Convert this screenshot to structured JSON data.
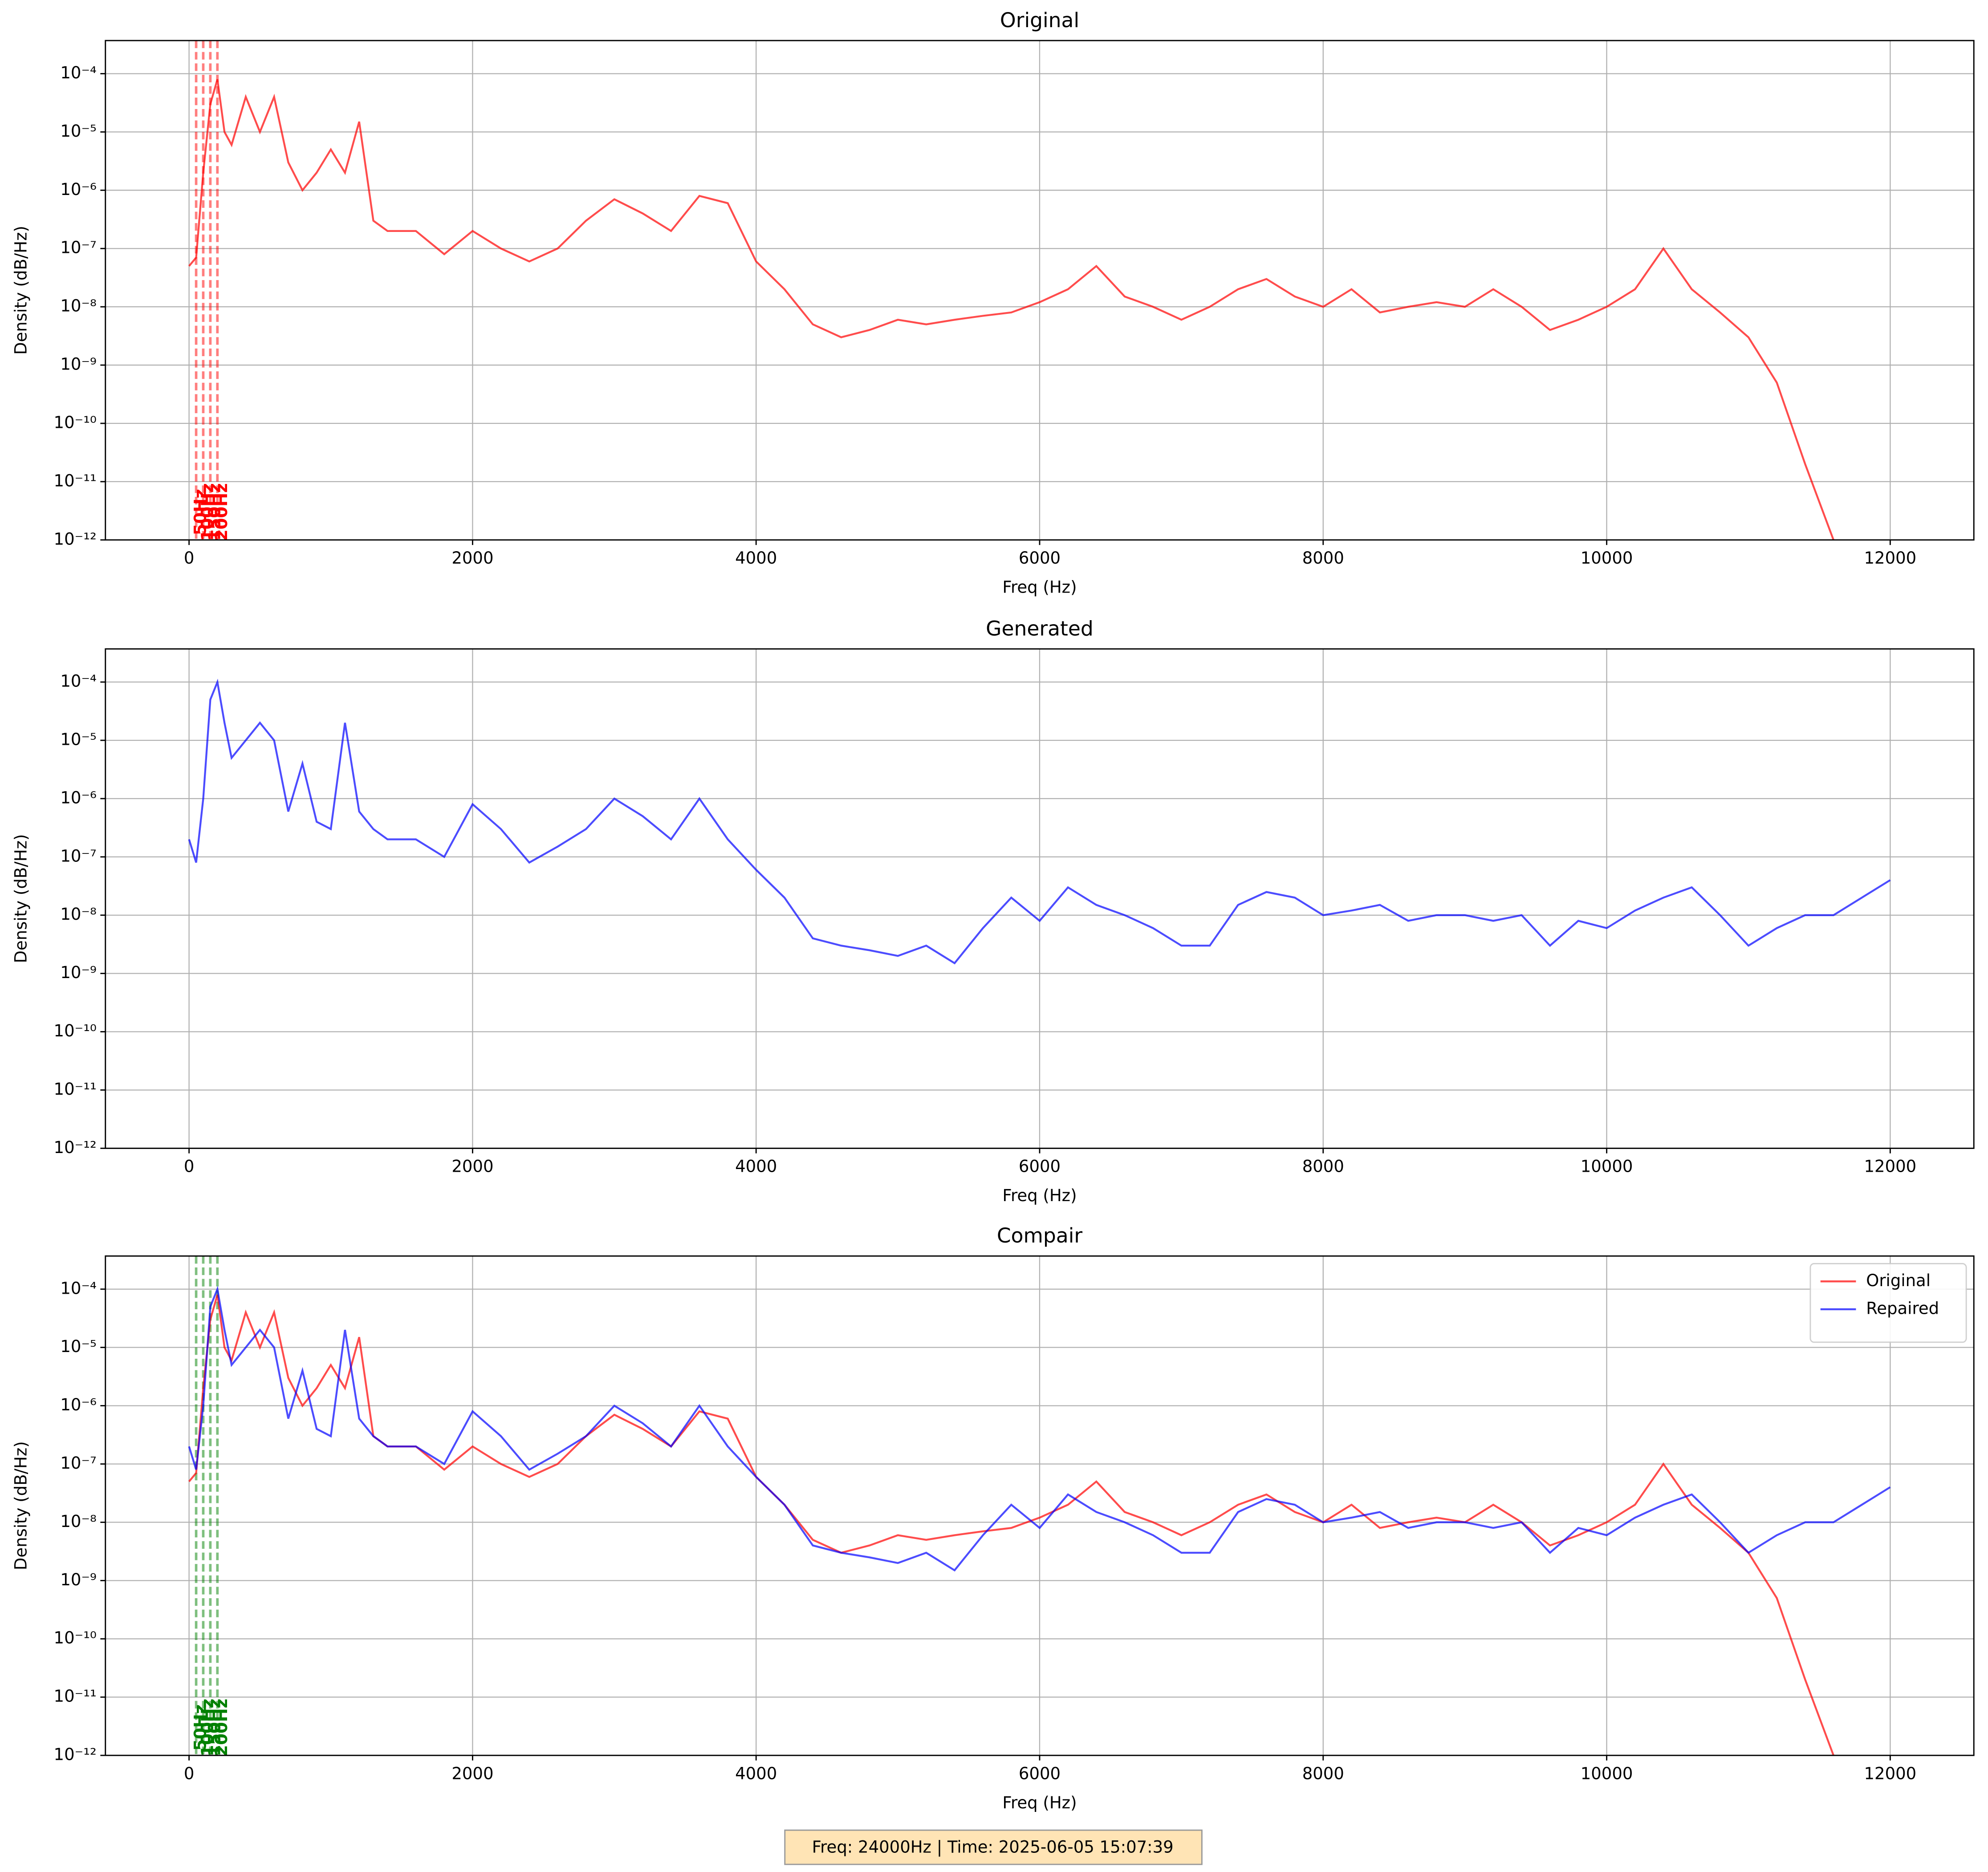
{
  "chart_data": [
    {
      "type": "line",
      "title": "Original",
      "xlabel": "Freq (Hz)",
      "ylabel": "Density (dB/Hz)",
      "x": [
        0,
        50,
        100,
        150,
        200,
        250,
        300,
        400,
        500,
        600,
        700,
        800,
        900,
        1000,
        1100,
        1200,
        1300,
        1400,
        1600,
        1800,
        2000,
        2200,
        2400,
        2600,
        2800,
        3000,
        3200,
        3400,
        3600,
        3800,
        4000,
        4200,
        4400,
        4600,
        4800,
        5000,
        5200,
        5400,
        5600,
        5800,
        6000,
        6200,
        6400,
        6600,
        6800,
        7000,
        7200,
        7400,
        7600,
        7800,
        8000,
        8200,
        8400,
        8600,
        8800,
        9000,
        9200,
        9400,
        9600,
        9800,
        10000,
        10200,
        10400,
        10600,
        10800,
        11000,
        11200,
        11400,
        11600,
        11800,
        12000
      ],
      "series": [
        {
          "name": "Original",
          "color": "#ff0000",
          "values": [
            5e-08,
            7e-08,
            2e-06,
            3e-05,
            8e-05,
            1e-05,
            6e-06,
            4e-05,
            1e-05,
            4e-05,
            3e-06,
            1e-06,
            2e-06,
            5e-06,
            2e-06,
            1.5e-05,
            3e-07,
            2e-07,
            2e-07,
            8e-08,
            2e-07,
            1e-07,
            6e-08,
            1e-07,
            3e-07,
            7e-07,
            4e-07,
            2e-07,
            8e-07,
            6e-07,
            6e-08,
            2e-08,
            5e-09,
            3e-09,
            4e-09,
            6e-09,
            5e-09,
            6e-09,
            7e-09,
            8e-09,
            1.2e-08,
            2e-08,
            5e-08,
            1.5e-08,
            1e-08,
            6e-09,
            1e-08,
            2e-08,
            3e-08,
            1.5e-08,
            1e-08,
            2e-08,
            8e-09,
            1e-08,
            1.2e-08,
            1e-08,
            2e-08,
            1e-08,
            4e-09,
            6e-09,
            1e-08,
            2e-08,
            1e-07,
            2e-08,
            8e-09,
            3e-09,
            5e-10,
            2e-11,
            1e-12,
            null,
            null
          ]
        }
      ],
      "xlim": [
        -590,
        12590
      ],
      "ylim": [
        1e-12,
        0.00037
      ],
      "log_y": true,
      "grid": true,
      "xticks": [
        0,
        2000,
        4000,
        6000,
        8000,
        10000,
        12000
      ],
      "yticks": [
        {
          "value": 1e-12,
          "label": "10⁻¹²"
        },
        {
          "value": 1e-11,
          "label": "10⁻¹¹"
        },
        {
          "value": 1e-10,
          "label": "10⁻¹⁰"
        },
        {
          "value": 1e-09,
          "label": "10⁻⁹"
        },
        {
          "value": 1e-08,
          "label": "10⁻⁸"
        },
        {
          "value": 1e-07,
          "label": "10⁻⁷"
        },
        {
          "value": 1e-06,
          "label": "10⁻⁶"
        },
        {
          "value": 1e-05,
          "label": "10⁻⁵"
        },
        {
          "value": 0.0001,
          "label": "10⁻⁴"
        }
      ],
      "vlines": [
        {
          "value": 50,
          "label": "50Hz"
        },
        {
          "value": 100,
          "label": "100Hz"
        },
        {
          "value": 150,
          "label": "150Hz"
        },
        {
          "value": 200,
          "label": "200Hz"
        }
      ],
      "vline_color": "#ff0000"
    },
    {
      "type": "line",
      "title": "Generated",
      "xlabel": "Freq (Hz)",
      "ylabel": "Density (dB/Hz)",
      "x": [
        0,
        50,
        100,
        150,
        200,
        250,
        300,
        400,
        500,
        600,
        700,
        800,
        900,
        1000,
        1100,
        1200,
        1300,
        1400,
        1600,
        1800,
        2000,
        2200,
        2400,
        2600,
        2800,
        3000,
        3200,
        3400,
        3600,
        3800,
        4000,
        4200,
        4400,
        4600,
        4800,
        5000,
        5200,
        5400,
        5600,
        5800,
        6000,
        6200,
        6400,
        6600,
        6800,
        7000,
        7200,
        7400,
        7600,
        7800,
        8000,
        8200,
        8400,
        8600,
        8800,
        9000,
        9200,
        9400,
        9600,
        9800,
        10000,
        10200,
        10400,
        10600,
        10800,
        11000,
        11200,
        11400,
        11600,
        11800,
        12000
      ],
      "series": [
        {
          "name": "Generated",
          "color": "#0000ff",
          "values": [
            2e-07,
            8e-08,
            1e-06,
            5e-05,
            0.0001,
            2e-05,
            5e-06,
            1e-05,
            2e-05,
            1e-05,
            6e-07,
            4e-06,
            4e-07,
            3e-07,
            2e-05,
            6e-07,
            3e-07,
            2e-07,
            2e-07,
            1e-07,
            8e-07,
            3e-07,
            8e-08,
            1.5e-07,
            3e-07,
            1e-06,
            5e-07,
            2e-07,
            1e-06,
            2e-07,
            6e-08,
            2e-08,
            4e-09,
            3e-09,
            2.5e-09,
            2e-09,
            3e-09,
            1.5e-09,
            6e-09,
            2e-08,
            8e-09,
            3e-08,
            1.5e-08,
            1e-08,
            6e-09,
            3e-09,
            3e-09,
            1.5e-08,
            2.5e-08,
            2e-08,
            1e-08,
            1.2e-08,
            1.5e-08,
            8e-09,
            1e-08,
            1e-08,
            8e-09,
            1e-08,
            3e-09,
            8e-09,
            6e-09,
            1.2e-08,
            2e-08,
            3e-08,
            1e-08,
            3e-09,
            6e-09,
            1e-08,
            1e-08,
            2e-08,
            4e-08
          ]
        }
      ],
      "xlim": [
        -590,
        12590
      ],
      "ylim": [
        1e-12,
        0.00037
      ],
      "log_y": true,
      "grid": true,
      "xticks": [
        0,
        2000,
        4000,
        6000,
        8000,
        10000,
        12000
      ],
      "yticks": [
        {
          "value": 1e-12,
          "label": "10⁻¹²"
        },
        {
          "value": 1e-11,
          "label": "10⁻¹¹"
        },
        {
          "value": 1e-10,
          "label": "10⁻¹⁰"
        },
        {
          "value": 1e-09,
          "label": "10⁻⁹"
        },
        {
          "value": 1e-08,
          "label": "10⁻⁸"
        },
        {
          "value": 1e-07,
          "label": "10⁻⁷"
        },
        {
          "value": 1e-06,
          "label": "10⁻⁶"
        },
        {
          "value": 1e-05,
          "label": "10⁻⁵"
        },
        {
          "value": 0.0001,
          "label": "10⁻⁴"
        }
      ]
    },
    {
      "type": "line",
      "title": "Compair",
      "xlabel": "Freq (Hz)",
      "ylabel": "Density (dB/Hz)",
      "x": [
        0,
        50,
        100,
        150,
        200,
        250,
        300,
        400,
        500,
        600,
        700,
        800,
        900,
        1000,
        1100,
        1200,
        1300,
        1400,
        1600,
        1800,
        2000,
        2200,
        2400,
        2600,
        2800,
        3000,
        3200,
        3400,
        3600,
        3800,
        4000,
        4200,
        4400,
        4600,
        4800,
        5000,
        5200,
        5400,
        5600,
        5800,
        6000,
        6200,
        6400,
        6600,
        6800,
        7000,
        7200,
        7400,
        7600,
        7800,
        8000,
        8200,
        8400,
        8600,
        8800,
        9000,
        9200,
        9400,
        9600,
        9800,
        10000,
        10200,
        10400,
        10600,
        10800,
        11000,
        11200,
        11400,
        11600,
        11800,
        12000
      ],
      "series": [
        {
          "name": "Original",
          "color": "#ff0000",
          "values": [
            5e-08,
            7e-08,
            2e-06,
            3e-05,
            8e-05,
            1e-05,
            6e-06,
            4e-05,
            1e-05,
            4e-05,
            3e-06,
            1e-06,
            2e-06,
            5e-06,
            2e-06,
            1.5e-05,
            3e-07,
            2e-07,
            2e-07,
            8e-08,
            2e-07,
            1e-07,
            6e-08,
            1e-07,
            3e-07,
            7e-07,
            4e-07,
            2e-07,
            8e-07,
            6e-07,
            6e-08,
            2e-08,
            5e-09,
            3e-09,
            4e-09,
            6e-09,
            5e-09,
            6e-09,
            7e-09,
            8e-09,
            1.2e-08,
            2e-08,
            5e-08,
            1.5e-08,
            1e-08,
            6e-09,
            1e-08,
            2e-08,
            3e-08,
            1.5e-08,
            1e-08,
            2e-08,
            8e-09,
            1e-08,
            1.2e-08,
            1e-08,
            2e-08,
            1e-08,
            4e-09,
            6e-09,
            1e-08,
            2e-08,
            1e-07,
            2e-08,
            8e-09,
            3e-09,
            5e-10,
            2e-11,
            1e-12,
            null,
            null
          ]
        },
        {
          "name": "Repaired",
          "color": "#0000ff",
          "values": [
            2e-07,
            8e-08,
            1e-06,
            5e-05,
            0.0001,
            2e-05,
            5e-06,
            1e-05,
            2e-05,
            1e-05,
            6e-07,
            4e-06,
            4e-07,
            3e-07,
            2e-05,
            6e-07,
            3e-07,
            2e-07,
            2e-07,
            1e-07,
            8e-07,
            3e-07,
            8e-08,
            1.5e-07,
            3e-07,
            1e-06,
            5e-07,
            2e-07,
            1e-06,
            2e-07,
            6e-08,
            2e-08,
            4e-09,
            3e-09,
            2.5e-09,
            2e-09,
            3e-09,
            1.5e-09,
            6e-09,
            2e-08,
            8e-09,
            3e-08,
            1.5e-08,
            1e-08,
            6e-09,
            3e-09,
            3e-09,
            1.5e-08,
            2.5e-08,
            2e-08,
            1e-08,
            1.2e-08,
            1.5e-08,
            8e-09,
            1e-08,
            1e-08,
            8e-09,
            1e-08,
            3e-09,
            8e-09,
            6e-09,
            1.2e-08,
            2e-08,
            3e-08,
            1e-08,
            3e-09,
            6e-09,
            1e-08,
            1e-08,
            2e-08,
            4e-08
          ]
        }
      ],
      "xlim": [
        -590,
        12590
      ],
      "ylim": [
        1e-12,
        0.00037
      ],
      "log_y": true,
      "grid": true,
      "legend": "upper right",
      "xticks": [
        0,
        2000,
        4000,
        6000,
        8000,
        10000,
        12000
      ],
      "yticks": [
        {
          "value": 1e-12,
          "label": "10⁻¹²"
        },
        {
          "value": 1e-11,
          "label": "10⁻¹¹"
        },
        {
          "value": 1e-10,
          "label": "10⁻¹⁰"
        },
        {
          "value": 1e-09,
          "label": "10⁻⁹"
        },
        {
          "value": 1e-08,
          "label": "10⁻⁸"
        },
        {
          "value": 1e-07,
          "label": "10⁻⁷"
        },
        {
          "value": 1e-06,
          "label": "10⁻⁶"
        },
        {
          "value": 1e-05,
          "label": "10⁻⁵"
        },
        {
          "value": 0.0001,
          "label": "10⁻⁴"
        }
      ],
      "vlines": [
        {
          "value": 50,
          "label": "50Hz"
        },
        {
          "value": 100,
          "label": "100Hz"
        },
        {
          "value": 150,
          "label": "150Hz"
        },
        {
          "value": 200,
          "label": "200Hz"
        }
      ],
      "vline_color": "#008000"
    }
  ],
  "footer": "Freq: 24000Hz | Time: 2025-06-05 15:07:39"
}
